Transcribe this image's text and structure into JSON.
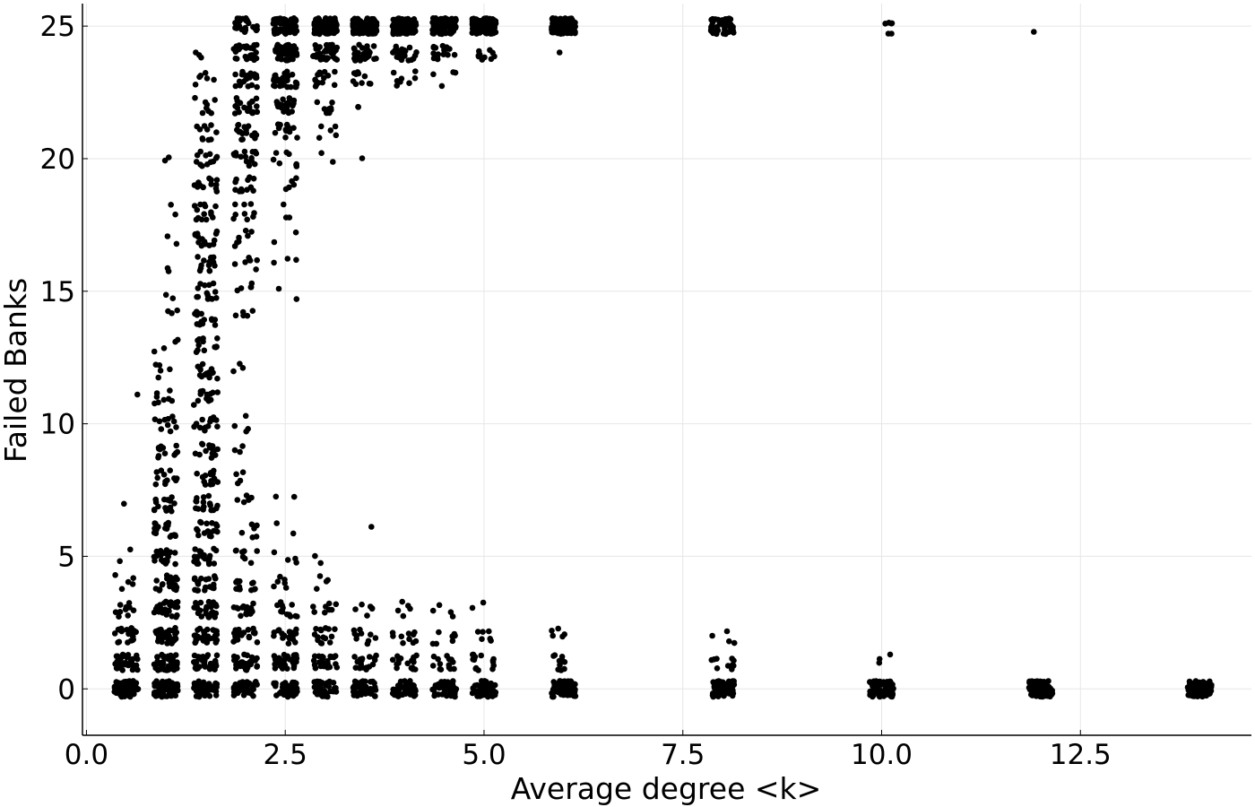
{
  "chart_data": {
    "type": "scatter",
    "title": "",
    "xlabel": "Average degree <k>",
    "ylabel": "Failed Banks",
    "xlim": [
      -0.05,
      14.65
    ],
    "ylim": [
      -1.75,
      25.85
    ],
    "xticks": [
      0.0,
      2.5,
      5.0,
      7.5,
      10.0,
      12.5
    ],
    "xtick_labels": [
      "0.0",
      "2.5",
      "5.0",
      "7.5",
      "10.0",
      "12.5"
    ],
    "yticks": [
      0,
      5,
      10,
      15,
      20,
      25
    ],
    "ytick_labels": [
      "0",
      "5",
      "10",
      "15",
      "20",
      "25"
    ],
    "grid": true,
    "legend": "none",
    "marker_color": "#000000",
    "jitter": {
      "x": 0.15,
      "y": 0.3
    },
    "x_groups": [
      0.5,
      1.0,
      1.5,
      2.0,
      2.5,
      3.0,
      3.5,
      4.0,
      4.5,
      5.0,
      6.0,
      8.0,
      10.0,
      12.0,
      14.0
    ],
    "points_by_group": [
      {
        "x": 0.5,
        "counts": {
          "0": 70,
          "1": 40,
          "2": 22,
          "3": 10,
          "4": 5,
          "5": 2,
          "7": 1,
          "11": 1
        }
      },
      {
        "x": 1.0,
        "counts": {
          "0": 60,
          "1": 45,
          "2": 35,
          "3": 30,
          "4": 25,
          "5": 20,
          "6": 18,
          "7": 15,
          "8": 12,
          "9": 12,
          "10": 10,
          "11": 8,
          "12": 5,
          "13": 4,
          "14": 3,
          "15": 2,
          "16": 2,
          "17": 2,
          "18": 2,
          "20": 2
        }
      },
      {
        "x": 1.5,
        "counts": {
          "0": 50,
          "1": 35,
          "2": 30,
          "3": 26,
          "4": 22,
          "5": 20,
          "6": 18,
          "7": 16,
          "8": 15,
          "9": 15,
          "10": 14,
          "11": 14,
          "12": 14,
          "13": 14,
          "14": 14,
          "15": 14,
          "16": 14,
          "17": 14,
          "18": 14,
          "19": 13,
          "20": 12,
          "21": 10,
          "22": 8,
          "23": 6,
          "24": 3
        }
      },
      {
        "x": 2.0,
        "counts": {
          "0": 45,
          "1": 30,
          "2": 22,
          "3": 16,
          "4": 12,
          "5": 8,
          "6": 6,
          "7": 5,
          "8": 4,
          "9": 3,
          "10": 4,
          "12": 3,
          "14": 5,
          "15": 5,
          "16": 6,
          "17": 7,
          "18": 9,
          "19": 12,
          "20": 15,
          "21": 18,
          "22": 20,
          "23": 22,
          "24": 24,
          "25": 26
        }
      },
      {
        "x": 2.5,
        "counts": {
          "0": 55,
          "1": 35,
          "2": 20,
          "3": 12,
          "4": 6,
          "5": 4,
          "6": 2,
          "7": 2,
          "15": 2,
          "16": 3,
          "17": 2,
          "18": 3,
          "19": 5,
          "20": 8,
          "21": 14,
          "22": 22,
          "23": 32,
          "24": 50,
          "25": 70
        }
      },
      {
        "x": 3.0,
        "counts": {
          "0": 45,
          "1": 25,
          "2": 15,
          "3": 8,
          "4": 4,
          "5": 2,
          "20": 2,
          "21": 5,
          "22": 8,
          "23": 14,
          "24": 35,
          "25": 90
        }
      },
      {
        "x": 3.5,
        "counts": {
          "0": 50,
          "1": 18,
          "2": 10,
          "3": 6,
          "6": 1,
          "20": 1,
          "22": 2,
          "23": 10,
          "24": 30,
          "25": 100
        }
      },
      {
        "x": 4.0,
        "counts": {
          "0": 45,
          "1": 18,
          "2": 10,
          "3": 5,
          "23": 8,
          "24": 22,
          "25": 110
        }
      },
      {
        "x": 4.5,
        "counts": {
          "0": 45,
          "1": 14,
          "2": 8,
          "3": 4,
          "23": 4,
          "24": 18,
          "25": 110
        }
      },
      {
        "x": 5.0,
        "counts": {
          "0": 50,
          "1": 14,
          "2": 6,
          "3": 2,
          "24": 10,
          "25": 115
        }
      },
      {
        "x": 6.0,
        "counts": {
          "0": 70,
          "1": 10,
          "2": 5,
          "24": 1,
          "25": 110
        }
      },
      {
        "x": 8.0,
        "counts": {
          "0": 80,
          "1": 10,
          "2": 4,
          "25": 45
        }
      },
      {
        "x": 10.0,
        "counts": {
          "0": 80,
          "1": 3,
          "25": 6
        }
      },
      {
        "x": 12.0,
        "counts": {
          "0": 100,
          "25": 1
        }
      },
      {
        "x": 14.0,
        "counts": {
          "0": 110
        }
      }
    ]
  }
}
